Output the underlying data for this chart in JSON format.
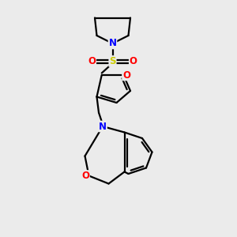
{
  "background_color": "#ebebeb",
  "atom_colors": {
    "N": "#0000ff",
    "O": "#ff0000",
    "S": "#cccc00",
    "C": "#000000"
  },
  "bond_color": "#000000",
  "bond_width": 1.6,
  "figsize": [
    3.0,
    3.0
  ],
  "dpi": 100,
  "xlim": [
    0,
    10
  ],
  "ylim": [
    0,
    12
  ]
}
